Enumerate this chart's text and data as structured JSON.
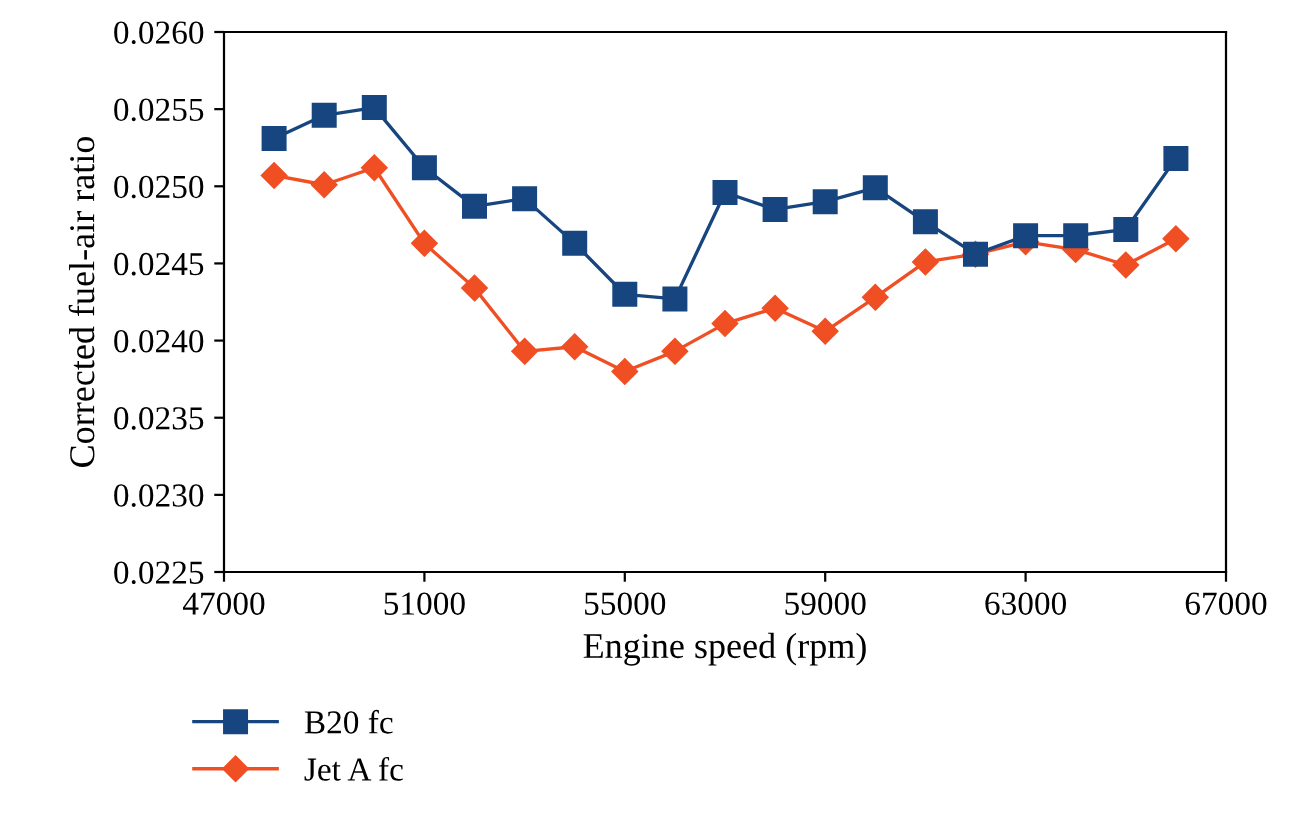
{
  "chart_data": {
    "type": "line",
    "xlabel": "Engine speed (rpm)",
    "ylabel": "Corrected fuel-air ratio",
    "x": [
      48000,
      49000,
      50000,
      51000,
      52000,
      53000,
      54000,
      55000,
      56000,
      57000,
      58000,
      59000,
      60000,
      61000,
      62000,
      63000,
      64000,
      65000,
      66000
    ],
    "series": [
      {
        "name": "B20 fc",
        "color": "#17457f",
        "marker": "square",
        "values": [
          0.02531,
          0.02546,
          0.02551,
          0.02512,
          0.02487,
          0.02492,
          0.02463,
          0.0243,
          0.02427,
          0.02496,
          0.02485,
          0.0249,
          0.02499,
          0.02477,
          0.02456,
          0.02468,
          0.02468,
          0.02472,
          0.02518
        ]
      },
      {
        "name": "Jet A fc",
        "color": "#f04e23",
        "marker": "diamond",
        "values": [
          0.02507,
          0.02501,
          0.02512,
          0.02463,
          0.02434,
          0.02393,
          0.02396,
          0.0238,
          0.02393,
          0.02411,
          0.02421,
          0.02406,
          0.02428,
          0.02451,
          0.02456,
          0.02464,
          0.02459,
          0.02449,
          0.02466
        ]
      }
    ],
    "xlim": [
      47000,
      67000
    ],
    "xticks": [
      47000,
      51000,
      55000,
      59000,
      63000,
      67000
    ],
    "ylim": [
      0.0225,
      0.026
    ],
    "yticks": [
      {
        "value": 0.0225,
        "label": "0.0225"
      },
      {
        "value": 0.023,
        "label": "0.0230"
      },
      {
        "value": 0.0235,
        "label": "0.0235"
      },
      {
        "value": 0.024,
        "label": "0.0240"
      },
      {
        "value": 0.0245,
        "label": "0.0245"
      },
      {
        "value": 0.025,
        "label": "0.0250"
      },
      {
        "value": 0.0255,
        "label": "0.0255"
      },
      {
        "value": 0.026,
        "label": "0.0260"
      }
    ],
    "grid": false,
    "legend": "bottom left",
    "line_style": "solid"
  }
}
